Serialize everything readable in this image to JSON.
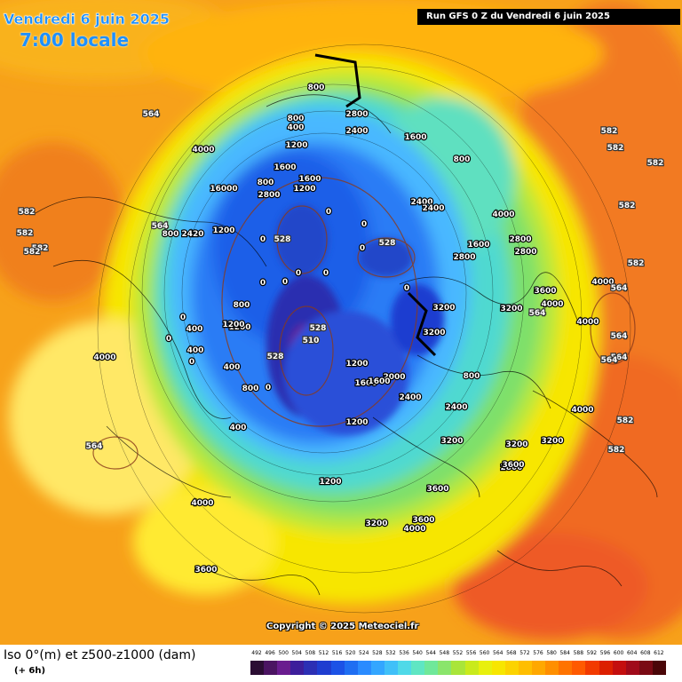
{
  "header": {
    "date": "Vendredi 6 juin 2025",
    "time": "7:00 locale",
    "run": "Run GFS 0 Z du Vendredi 6 juin 2025"
  },
  "copyright": "Copyright © 2025 Meteociel.fr",
  "footer": {
    "product": "Iso 0°(m) et z500-z1000 (dam)",
    "lead": "(+ 6h)"
  },
  "legend": {
    "values": [
      "492",
      "496",
      "500",
      "504",
      "508",
      "512",
      "516",
      "520",
      "524",
      "528",
      "532",
      "536",
      "540",
      "544",
      "548",
      "552",
      "556",
      "560",
      "564",
      "568",
      "572",
      "576",
      "580",
      "584",
      "588",
      "592",
      "596",
      "600",
      "604",
      "608",
      "612"
    ],
    "colors": [
      "#2b0d33",
      "#4b1462",
      "#6a1c8f",
      "#3d1e9b",
      "#2c2fb4",
      "#1f3dd0",
      "#1c52e6",
      "#1f6ef2",
      "#2a8bff",
      "#33a6ff",
      "#40c0f8",
      "#4fd9e8",
      "#5fe6c3",
      "#6fe89a",
      "#8ae56b",
      "#a9e53a",
      "#c9ea1c",
      "#e8f00d",
      "#f7e600",
      "#fcd300",
      "#ffbe00",
      "#ffa800",
      "#ff8f00",
      "#ff7300",
      "#ff5a00",
      "#f23a00",
      "#dc1f00",
      "#c40e0e",
      "#a00a1a",
      "#7a0a14",
      "#4a0608"
    ]
  },
  "map_labels": {
    "contours": [
      "800",
      "2800",
      "2400",
      "1600",
      "800",
      "4000",
      "800",
      "400",
      "1200",
      "1600",
      "800",
      "1200",
      "16000",
      "2800",
      "2400",
      "2400",
      "4000",
      "800",
      "1200",
      "1600",
      "0",
      "0",
      "0",
      "2800",
      "2420",
      "1600",
      "2800",
      "0",
      "0",
      "3600",
      "1200",
      "0",
      "0",
      "0",
      "0",
      "0",
      "400",
      "400",
      "800",
      "1200",
      "0",
      "0",
      "4000",
      "1200",
      "1600",
      "3200",
      "3200",
      "4000",
      "4000",
      "400",
      "2800",
      "4000",
      "3600",
      "3200",
      "1200",
      "0",
      "2000",
      "3200",
      "2800",
      "4000",
      "1200",
      "400",
      "800",
      "3200",
      "3600",
      "4000",
      "3600",
      "2400",
      "4000",
      "1600",
      "2400",
      "800",
      "3200",
      "3600",
      "3200"
    ],
    "z500": [
      "564",
      "564",
      "582",
      "582",
      "582",
      "582",
      "582",
      "528",
      "528",
      "528",
      "528",
      "510",
      "564",
      "564",
      "564",
      "564",
      "564",
      "564",
      "582",
      "582",
      "582",
      "582",
      "582",
      "582"
    ]
  }
}
